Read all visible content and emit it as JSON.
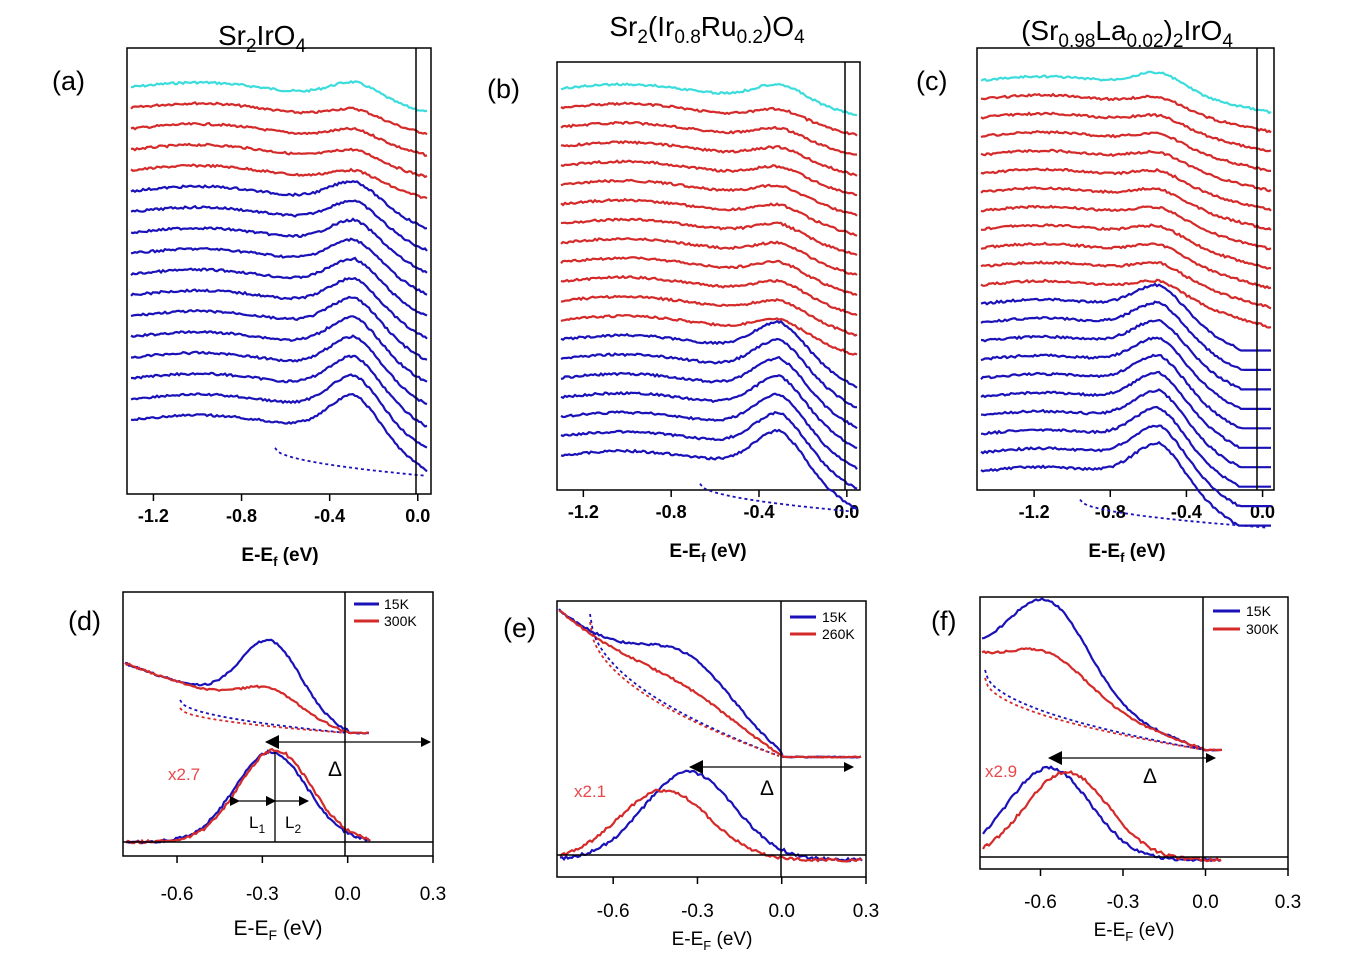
{
  "colors": {
    "blue": "#1a12b8",
    "red": "#d42a2a",
    "cyan": "#3ddcdc",
    "redlabel": "#e8484b",
    "axis": "#000000"
  },
  "chart_data": [
    {
      "id": "a",
      "type": "line",
      "panel_label": "(a)",
      "title": {
        "main": "Sr",
        "sub1": "2",
        "mid": "IrO",
        "sub2": "4"
      },
      "xlabel": {
        "pre": "E-E",
        "sub": "f",
        "post": " (eV)"
      },
      "xlim": [
        -1.32,
        0.06
      ],
      "xticks": [
        -1.2,
        -0.8,
        -0.4,
        0.0
      ],
      "xtick_labels": [
        "-1.2",
        "-0.8",
        "-0.4",
        "0.0"
      ],
      "series_counts": {
        "cyan": 1,
        "red": 4,
        "blue": 12
      },
      "peak_ev": -0.27,
      "hump_ev": -0.95,
      "fermi_ev": 0.0
    },
    {
      "id": "b",
      "type": "line",
      "panel_label": "(b)",
      "title": {
        "main": "Sr",
        "sub1": "2",
        "mid": "(Ir",
        "sub2": "0.8",
        "mid2": "Ru",
        "sub3": "0.2",
        "end": ")O",
        "sub4": "4"
      },
      "xlabel": {
        "pre": "E-E",
        "sub": "f",
        "post": " (eV)"
      },
      "xlim": [
        -1.32,
        0.06
      ],
      "xticks": [
        -1.2,
        -0.8,
        -0.4,
        0.0
      ],
      "xtick_labels": [
        "-1.2",
        "-0.8",
        "-0.4",
        "0.0"
      ],
      "series_counts": {
        "cyan": 1,
        "red": 12,
        "blue": 7
      },
      "peak_ev": -0.32,
      "hump_ev": -1.0,
      "fermi_ev": 0.0
    },
    {
      "id": "c",
      "type": "line",
      "panel_label": "(c)",
      "title": {
        "main": "(Sr",
        "sub1": "0.98",
        "mid": "La",
        "sub2": "0.02",
        "end": ")",
        "sub3": "2",
        "end2": "IrO",
        "sub4": "4"
      },
      "xlabel": {
        "pre": "E-E",
        "sub": "f",
        "post": " (eV)"
      },
      "xlim": [
        -1.5,
        0.06
      ],
      "xticks": [
        -1.2,
        -0.8,
        -0.4,
        0.0
      ],
      "xtick_labels": [
        "-1.2",
        "-0.8",
        "-0.4",
        "0.0"
      ],
      "series_counts": {
        "cyan": 1,
        "red": 11,
        "blue": 10
      },
      "peak_ev": -0.55,
      "hump_ev": -1.2,
      "fermi_ev": 0.0
    },
    {
      "id": "d",
      "type": "line",
      "panel_label": "(d)",
      "legend": [
        "15K",
        "300K"
      ],
      "scale_label": "x2.7",
      "gap_label": "Δ",
      "width_labels": [
        "L",
        "1",
        "L",
        "2"
      ],
      "xlabel": {
        "pre": "E-E",
        "sub": "F",
        "post": " (eV)"
      },
      "xlim": [
        -0.79,
        0.3
      ],
      "xticks": [
        -0.6,
        -0.3,
        0.0,
        0.3
      ],
      "xtick_labels": [
        "-0.6",
        "-0.3",
        "0.0",
        "0.3"
      ],
      "peak_ev": -0.27
    },
    {
      "id": "e",
      "type": "line",
      "panel_label": "(e)",
      "legend": [
        "15K",
        "260K"
      ],
      "scale_label": "x2.1",
      "gap_label": "Δ",
      "xlabel": {
        "pre": "E-E",
        "sub": "F",
        "post": " (eV)"
      },
      "xlim": [
        -0.8,
        0.3
      ],
      "xticks": [
        -0.6,
        -0.3,
        0.0,
        0.3
      ],
      "xtick_labels": [
        "-0.6",
        "-0.3",
        "0.0",
        "0.3"
      ],
      "peak_ev": -0.33
    },
    {
      "id": "f",
      "type": "line",
      "panel_label": "(f)",
      "legend": [
        "15K",
        "300K"
      ],
      "scale_label": "x2.9",
      "gap_label": "Δ",
      "xlabel": {
        "pre": "E-E",
        "sub": "F",
        "post": " (eV)"
      },
      "xlim": [
        -0.82,
        0.3
      ],
      "xticks": [
        -0.6,
        -0.3,
        0.0,
        0.3
      ],
      "xtick_labels": [
        "-0.6",
        "-0.3",
        "0.0",
        "0.3"
      ],
      "peak_ev": -0.57
    }
  ]
}
